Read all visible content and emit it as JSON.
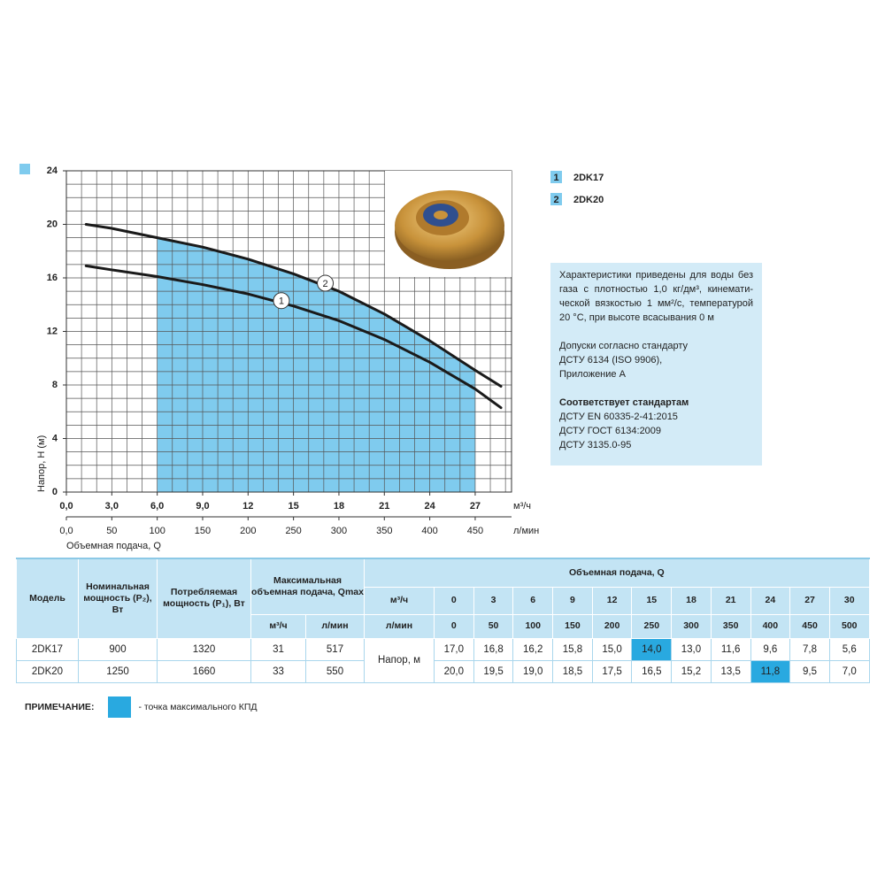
{
  "chart_data": {
    "type": "line",
    "y_label": "Напор, Н (м)",
    "x_label": "Объемная подача, Q",
    "x_unit": "м³/ч",
    "x2_unit": "л/мин",
    "xlim": [
      0,
      29.4
    ],
    "x2lim": [
      0,
      490
    ],
    "ylim": [
      0,
      24
    ],
    "xticks": [
      {
        "value": 0,
        "label": "0,0"
      },
      {
        "value": 3,
        "label": "3,0"
      },
      {
        "value": 6,
        "label": "6,0"
      },
      {
        "value": 9,
        "label": "9,0"
      },
      12,
      15,
      18,
      21,
      24,
      27
    ],
    "x2ticks": [
      {
        "value": 0,
        "label": "0,0"
      },
      50,
      100,
      150,
      200,
      250,
      300,
      350,
      400,
      450
    ],
    "yticks": [
      0,
      4,
      8,
      12,
      16,
      20,
      24
    ],
    "grid": true,
    "x_minor_step": 1,
    "y_minor_step": 1,
    "series": [
      {
        "name": "2DK17",
        "label": "1",
        "color": "#1a1a1a",
        "x": [
          1.3,
          3,
          6,
          9,
          12,
          15,
          18,
          21,
          24,
          27,
          28.7
        ],
        "values": [
          16.9,
          16.6,
          16.1,
          15.5,
          14.8,
          13.9,
          12.8,
          11.4,
          9.7,
          7.7,
          6.3
        ]
      },
      {
        "name": "2DK20",
        "label": "2",
        "color": "#1a1a1a",
        "x": [
          1.3,
          3,
          6,
          9,
          12,
          15,
          18,
          21,
          24,
          27,
          28.7
        ],
        "values": [
          20.0,
          19.7,
          19.0,
          18.3,
          17.4,
          16.3,
          15.0,
          13.3,
          11.3,
          9.1,
          7.9
        ]
      }
    ],
    "shaded_region": {
      "x": [
        6,
        27
      ],
      "under_series": 1,
      "color": "#7fcbee"
    },
    "annotations": [
      {
        "text": "1",
        "x": 14.2,
        "y": 14.3
      },
      {
        "text": "2",
        "x": 17.1,
        "y": 15.6
      }
    ]
  },
  "info": {
    "conditions": [
      "Характеристики приведены для воды без",
      "газа с плотностью 1,0 кг/дм³, кинемати-",
      "ческой вязкостью 1 мм²/с, температурой",
      "20 °C, при высоте всасывания 0 м"
    ],
    "tolerances": [
      "Допуски согласно стандарту",
      "ДСТУ 6134 (ISO 9906),",
      "Приложение А"
    ],
    "standards_title": "Соответствует стандартам",
    "standards": [
      "ДСТУ EN 60335-2-41:2015",
      "ДСТУ ГОСТ 6134:2009",
      "ДСТУ 3135.0-95"
    ]
  },
  "table": {
    "headers": {
      "model": "Модель",
      "nominal_power": "Номинальная мощность (P₂), Вт",
      "consumed_power": "Потребляемая мощность (P₁), Вт",
      "max_flow": "Максимальная объемная подача, Qmax",
      "max_flow_units": [
        "м³/ч",
        "л/мин"
      ],
      "flow": "Объемная подача, Q",
      "flow_units": [
        "м³/ч",
        "л/мин"
      ],
      "head": "Напор, м"
    },
    "flow_m3h": [
      0,
      3,
      6,
      9,
      12,
      15,
      18,
      21,
      24,
      27,
      30
    ],
    "flow_lmin": [
      0,
      50,
      100,
      150,
      200,
      250,
      300,
      350,
      400,
      450,
      500
    ],
    "highlight_color": "#29a9e0",
    "rows": [
      {
        "model": "2DK17",
        "p2": 900,
        "p1": 1320,
        "qmax_m3h": 31,
        "qmax_lmin": 517,
        "head": [
          "17,0",
          "16,8",
          "16,2",
          "15,8",
          "15,0",
          "14,0",
          "13,0",
          "11,6",
          "9,6",
          "7,8",
          "5,6"
        ],
        "best": 5
      },
      {
        "model": "2DK20",
        "p2": 1250,
        "p1": 1660,
        "qmax_m3h": 33,
        "qmax_lmin": 550,
        "head": [
          "20,0",
          "19,5",
          "19,0",
          "18,5",
          "17,5",
          "16,5",
          "15,2",
          "13,5",
          "11,8",
          "9,5",
          "7,0"
        ],
        "best": 8
      }
    ]
  },
  "note": {
    "label": "ПРИМЕЧАНИЕ:",
    "text": "- точка максимального КПД"
  }
}
